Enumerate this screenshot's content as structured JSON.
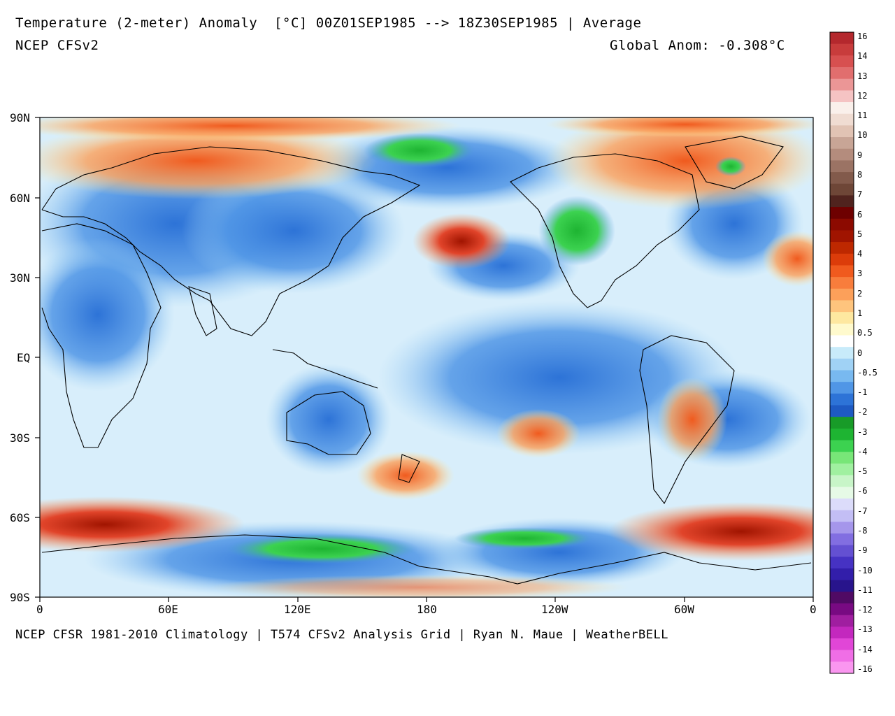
{
  "header": {
    "title": "Temperature (2-meter) Anomaly  [°C] 00Z01SEP1985 --> 18Z30SEP1985 | Average",
    "model": "NCEP CFSv2",
    "global_anom": "Global Anom: -0.308°C"
  },
  "footer": {
    "credits": "NCEP CFSR 1981-2010 Climatology | T574 CFSv2 Analysis Grid | Ryan N. Maue | WeatherBELL"
  },
  "map": {
    "lat_labels": [
      "90N",
      "60N",
      "30N",
      "EQ",
      "30S",
      "60S",
      "90S"
    ],
    "lon_labels": [
      "0",
      "60E",
      "120E",
      "180",
      "120W",
      "60W",
      "0"
    ]
  },
  "colorbar": {
    "labels": [
      "16",
      "14",
      "13",
      "12",
      "11",
      "10",
      "9",
      "8",
      "7",
      "6",
      "5",
      "4",
      "3",
      "2",
      "1",
      "0.5",
      "0",
      "-0.5",
      "-1",
      "-2",
      "-3",
      "-4",
      "-5",
      "-6",
      "-7",
      "-8",
      "-9",
      "-10",
      "-11",
      "-12",
      "-13",
      "-14",
      "-16"
    ],
    "colors": [
      "#b4282d",
      "#c83c3c",
      "#d75050",
      "#e16e6e",
      "#eb9696",
      "#f5c3c3",
      "#faf0eb",
      "#f0dcd2",
      "#e1c3b4",
      "#c8a596",
      "#b48c7d",
      "#9b7364",
      "#825a4b",
      "#6e4637",
      "#50231e",
      "#6e0000",
      "#8c0a00",
      "#a01400",
      "#be2800",
      "#dc3c0a",
      "#f05a1e",
      "#f87d3c",
      "#fca05a",
      "#fec47d",
      "#fee8a0",
      "#fffacd",
      "#ffffff",
      "#c8ebfa",
      "#a0d2f5",
      "#78b9f0",
      "#5096e6",
      "#2d73d7",
      "#1e5ac3",
      "#189b28",
      "#1eb432",
      "#3cd250",
      "#78e678",
      "#a0f0a0",
      "#c8f5c8",
      "#e6fae6",
      "#dcdcfa",
      "#c3bef5",
      "#a596eb",
      "#826ee1",
      "#6450d2",
      "#4632c3",
      "#321eaa",
      "#28148c",
      "#500a64",
      "#780a82",
      "#a01ea0",
      "#c328be",
      "#e146d7",
      "#f06ee6",
      "#fa96f0"
    ]
  }
}
